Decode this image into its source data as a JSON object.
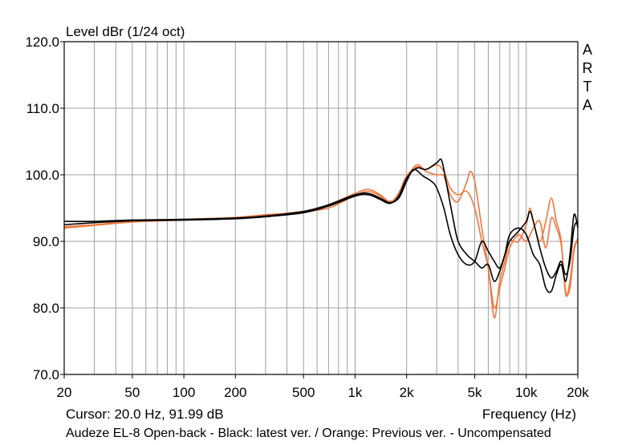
{
  "chart_data": {
    "type": "line",
    "title": "Level dBr (1/24 oct)",
    "xlabel": "Frequency (Hz)",
    "ylabel": "Level dBr (1/24 oct)",
    "xscale": "log",
    "xlim": [
      20,
      20000
    ],
    "ylim": [
      70,
      120
    ],
    "grid": true,
    "brand_letters": [
      "A",
      "R",
      "T",
      "A"
    ],
    "x_ticks": [
      {
        "value": 20,
        "label": "20"
      },
      {
        "value": 50,
        "label": "50"
      },
      {
        "value": 100,
        "label": "100"
      },
      {
        "value": 200,
        "label": "200"
      },
      {
        "value": 500,
        "label": "500"
      },
      {
        "value": 1000,
        "label": "1k"
      },
      {
        "value": 2000,
        "label": "2k"
      },
      {
        "value": 5000,
        "label": "5k"
      },
      {
        "value": 10000,
        "label": "10k"
      },
      {
        "value": 20000,
        "label": "20k"
      }
    ],
    "y_ticks": [
      {
        "value": 70,
        "label": "70.0"
      },
      {
        "value": 80,
        "label": "80.0"
      },
      {
        "value": 90,
        "label": "90.0"
      },
      {
        "value": 100,
        "label": "100.0"
      },
      {
        "value": 110,
        "label": "110.0"
      },
      {
        "value": 120,
        "label": "120.0"
      }
    ],
    "cursor_text": "Cursor: 20.0 Hz, 91.99 dB",
    "caption": "Audeze EL-8 Open-back - Black: latest ver. / Orange: Previous ver. - Uncompensated",
    "colors": {
      "black": "#000000",
      "orange": "#f07840"
    },
    "series": [
      {
        "color": "#000000",
        "points": [
          [
            20,
            93.0
          ],
          [
            30,
            93.0
          ],
          [
            50,
            93.2
          ],
          [
            100,
            93.3
          ],
          [
            200,
            93.5
          ],
          [
            300,
            93.8
          ],
          [
            500,
            94.5
          ],
          [
            700,
            95.5
          ],
          [
            1000,
            97.0
          ],
          [
            1200,
            97.2
          ],
          [
            1400,
            96.5
          ],
          [
            1600,
            95.8
          ],
          [
            1800,
            96.5
          ],
          [
            2000,
            99.0
          ],
          [
            2200,
            100.8
          ],
          [
            2500,
            99.8
          ],
          [
            2800,
            99.0
          ],
          [
            3000,
            98.0
          ],
          [
            3300,
            95.0
          ],
          [
            3600,
            91.0
          ],
          [
            4000,
            88.0
          ],
          [
            4500,
            86.5
          ],
          [
            5000,
            87.0
          ],
          [
            5500,
            90.0
          ],
          [
            6000,
            88.5
          ],
          [
            6500,
            87.0
          ],
          [
            7000,
            86.0
          ],
          [
            7500,
            88.0
          ],
          [
            8000,
            90.0
          ],
          [
            9000,
            91.5
          ],
          [
            10000,
            93.0
          ],
          [
            10500,
            94.5
          ],
          [
            11000,
            93.0
          ],
          [
            12000,
            89.0
          ],
          [
            13000,
            86.0
          ],
          [
            14000,
            84.5
          ],
          [
            15000,
            85.5
          ],
          [
            16000,
            87.0
          ],
          [
            17000,
            85.0
          ],
          [
            18000,
            87.0
          ],
          [
            19000,
            92.0
          ],
          [
            20000,
            93.0
          ]
        ]
      },
      {
        "color": "#000000",
        "points": [
          [
            20,
            92.5
          ],
          [
            30,
            92.8
          ],
          [
            50,
            93.1
          ],
          [
            100,
            93.2
          ],
          [
            200,
            93.4
          ],
          [
            300,
            93.7
          ],
          [
            500,
            94.3
          ],
          [
            700,
            95.3
          ],
          [
            1000,
            96.8
          ],
          [
            1200,
            97.0
          ],
          [
            1400,
            96.3
          ],
          [
            1600,
            95.7
          ],
          [
            1800,
            96.8
          ],
          [
            2000,
            99.5
          ],
          [
            2300,
            101.0
          ],
          [
            2600,
            100.8
          ],
          [
            3000,
            101.8
          ],
          [
            3200,
            102.2
          ],
          [
            3400,
            99.0
          ],
          [
            3700,
            94.0
          ],
          [
            4000,
            90.0
          ],
          [
            4500,
            88.0
          ],
          [
            5000,
            87.0
          ],
          [
            5500,
            86.0
          ],
          [
            6000,
            86.5
          ],
          [
            6500,
            84.0
          ],
          [
            7000,
            85.5
          ],
          [
            7500,
            88.0
          ],
          [
            8000,
            91.0
          ],
          [
            9000,
            92.0
          ],
          [
            10000,
            91.0
          ],
          [
            11000,
            88.0
          ],
          [
            12000,
            86.5
          ],
          [
            13000,
            83.0
          ],
          [
            14000,
            82.5
          ],
          [
            15000,
            85.0
          ],
          [
            16000,
            86.5
          ],
          [
            17000,
            84.0
          ],
          [
            18000,
            88.0
          ],
          [
            19000,
            94.0
          ],
          [
            20000,
            92.0
          ]
        ]
      },
      {
        "color": "#f07840",
        "points": [
          [
            20,
            92.2
          ],
          [
            30,
            92.5
          ],
          [
            50,
            93.0
          ],
          [
            100,
            93.3
          ],
          [
            200,
            93.6
          ],
          [
            300,
            94.0
          ],
          [
            500,
            94.4
          ],
          [
            700,
            95.5
          ],
          [
            1000,
            97.2
          ],
          [
            1200,
            97.8
          ],
          [
            1400,
            97.0
          ],
          [
            1600,
            96.0
          ],
          [
            1800,
            97.0
          ],
          [
            2000,
            99.5
          ],
          [
            2300,
            101.5
          ],
          [
            2600,
            100.5
          ],
          [
            3000,
            100.0
          ],
          [
            3300,
            99.8
          ],
          [
            3600,
            97.0
          ],
          [
            4000,
            96.0
          ],
          [
            4500,
            99.0
          ],
          [
            4700,
            100.5
          ],
          [
            5000,
            99.0
          ],
          [
            5500,
            92.0
          ],
          [
            6000,
            86.0
          ],
          [
            6500,
            78.5
          ],
          [
            7000,
            84.0
          ],
          [
            7500,
            87.0
          ],
          [
            8000,
            90.0
          ],
          [
            9000,
            90.0
          ],
          [
            10000,
            92.5
          ],
          [
            10500,
            95.0
          ],
          [
            11000,
            93.0
          ],
          [
            12000,
            90.0
          ],
          [
            13000,
            93.0
          ],
          [
            14000,
            96.5
          ],
          [
            15000,
            93.0
          ],
          [
            16000,
            90.0
          ],
          [
            17000,
            82.0
          ],
          [
            18000,
            84.0
          ],
          [
            19000,
            89.0
          ],
          [
            20000,
            90.0
          ]
        ]
      },
      {
        "color": "#f07840",
        "points": [
          [
            20,
            92.0
          ],
          [
            30,
            92.4
          ],
          [
            50,
            92.9
          ],
          [
            100,
            93.2
          ],
          [
            200,
            93.5
          ],
          [
            300,
            93.9
          ],
          [
            500,
            94.5
          ],
          [
            700,
            95.0
          ],
          [
            1000,
            96.9
          ],
          [
            1200,
            97.5
          ],
          [
            1400,
            96.8
          ],
          [
            1600,
            95.8
          ],
          [
            1800,
            97.3
          ],
          [
            2000,
            99.8
          ],
          [
            2300,
            101.2
          ],
          [
            2600,
            100.8
          ],
          [
            3000,
            101.5
          ],
          [
            3300,
            100.5
          ],
          [
            3600,
            98.0
          ],
          [
            4000,
            97.0
          ],
          [
            4500,
            97.5
          ],
          [
            5000,
            95.0
          ],
          [
            5500,
            90.0
          ],
          [
            6000,
            86.0
          ],
          [
            6500,
            80.0
          ],
          [
            7000,
            83.0
          ],
          [
            7500,
            86.0
          ],
          [
            8000,
            89.0
          ],
          [
            9000,
            91.0
          ],
          [
            10000,
            90.0
          ],
          [
            11000,
            92.0
          ],
          [
            12000,
            93.0
          ],
          [
            13000,
            89.0
          ],
          [
            14000,
            93.5
          ],
          [
            15000,
            92.0
          ],
          [
            16000,
            89.5
          ],
          [
            17000,
            82.5
          ],
          [
            18000,
            83.0
          ],
          [
            19000,
            88.5
          ],
          [
            20000,
            90.5
          ]
        ]
      }
    ]
  }
}
